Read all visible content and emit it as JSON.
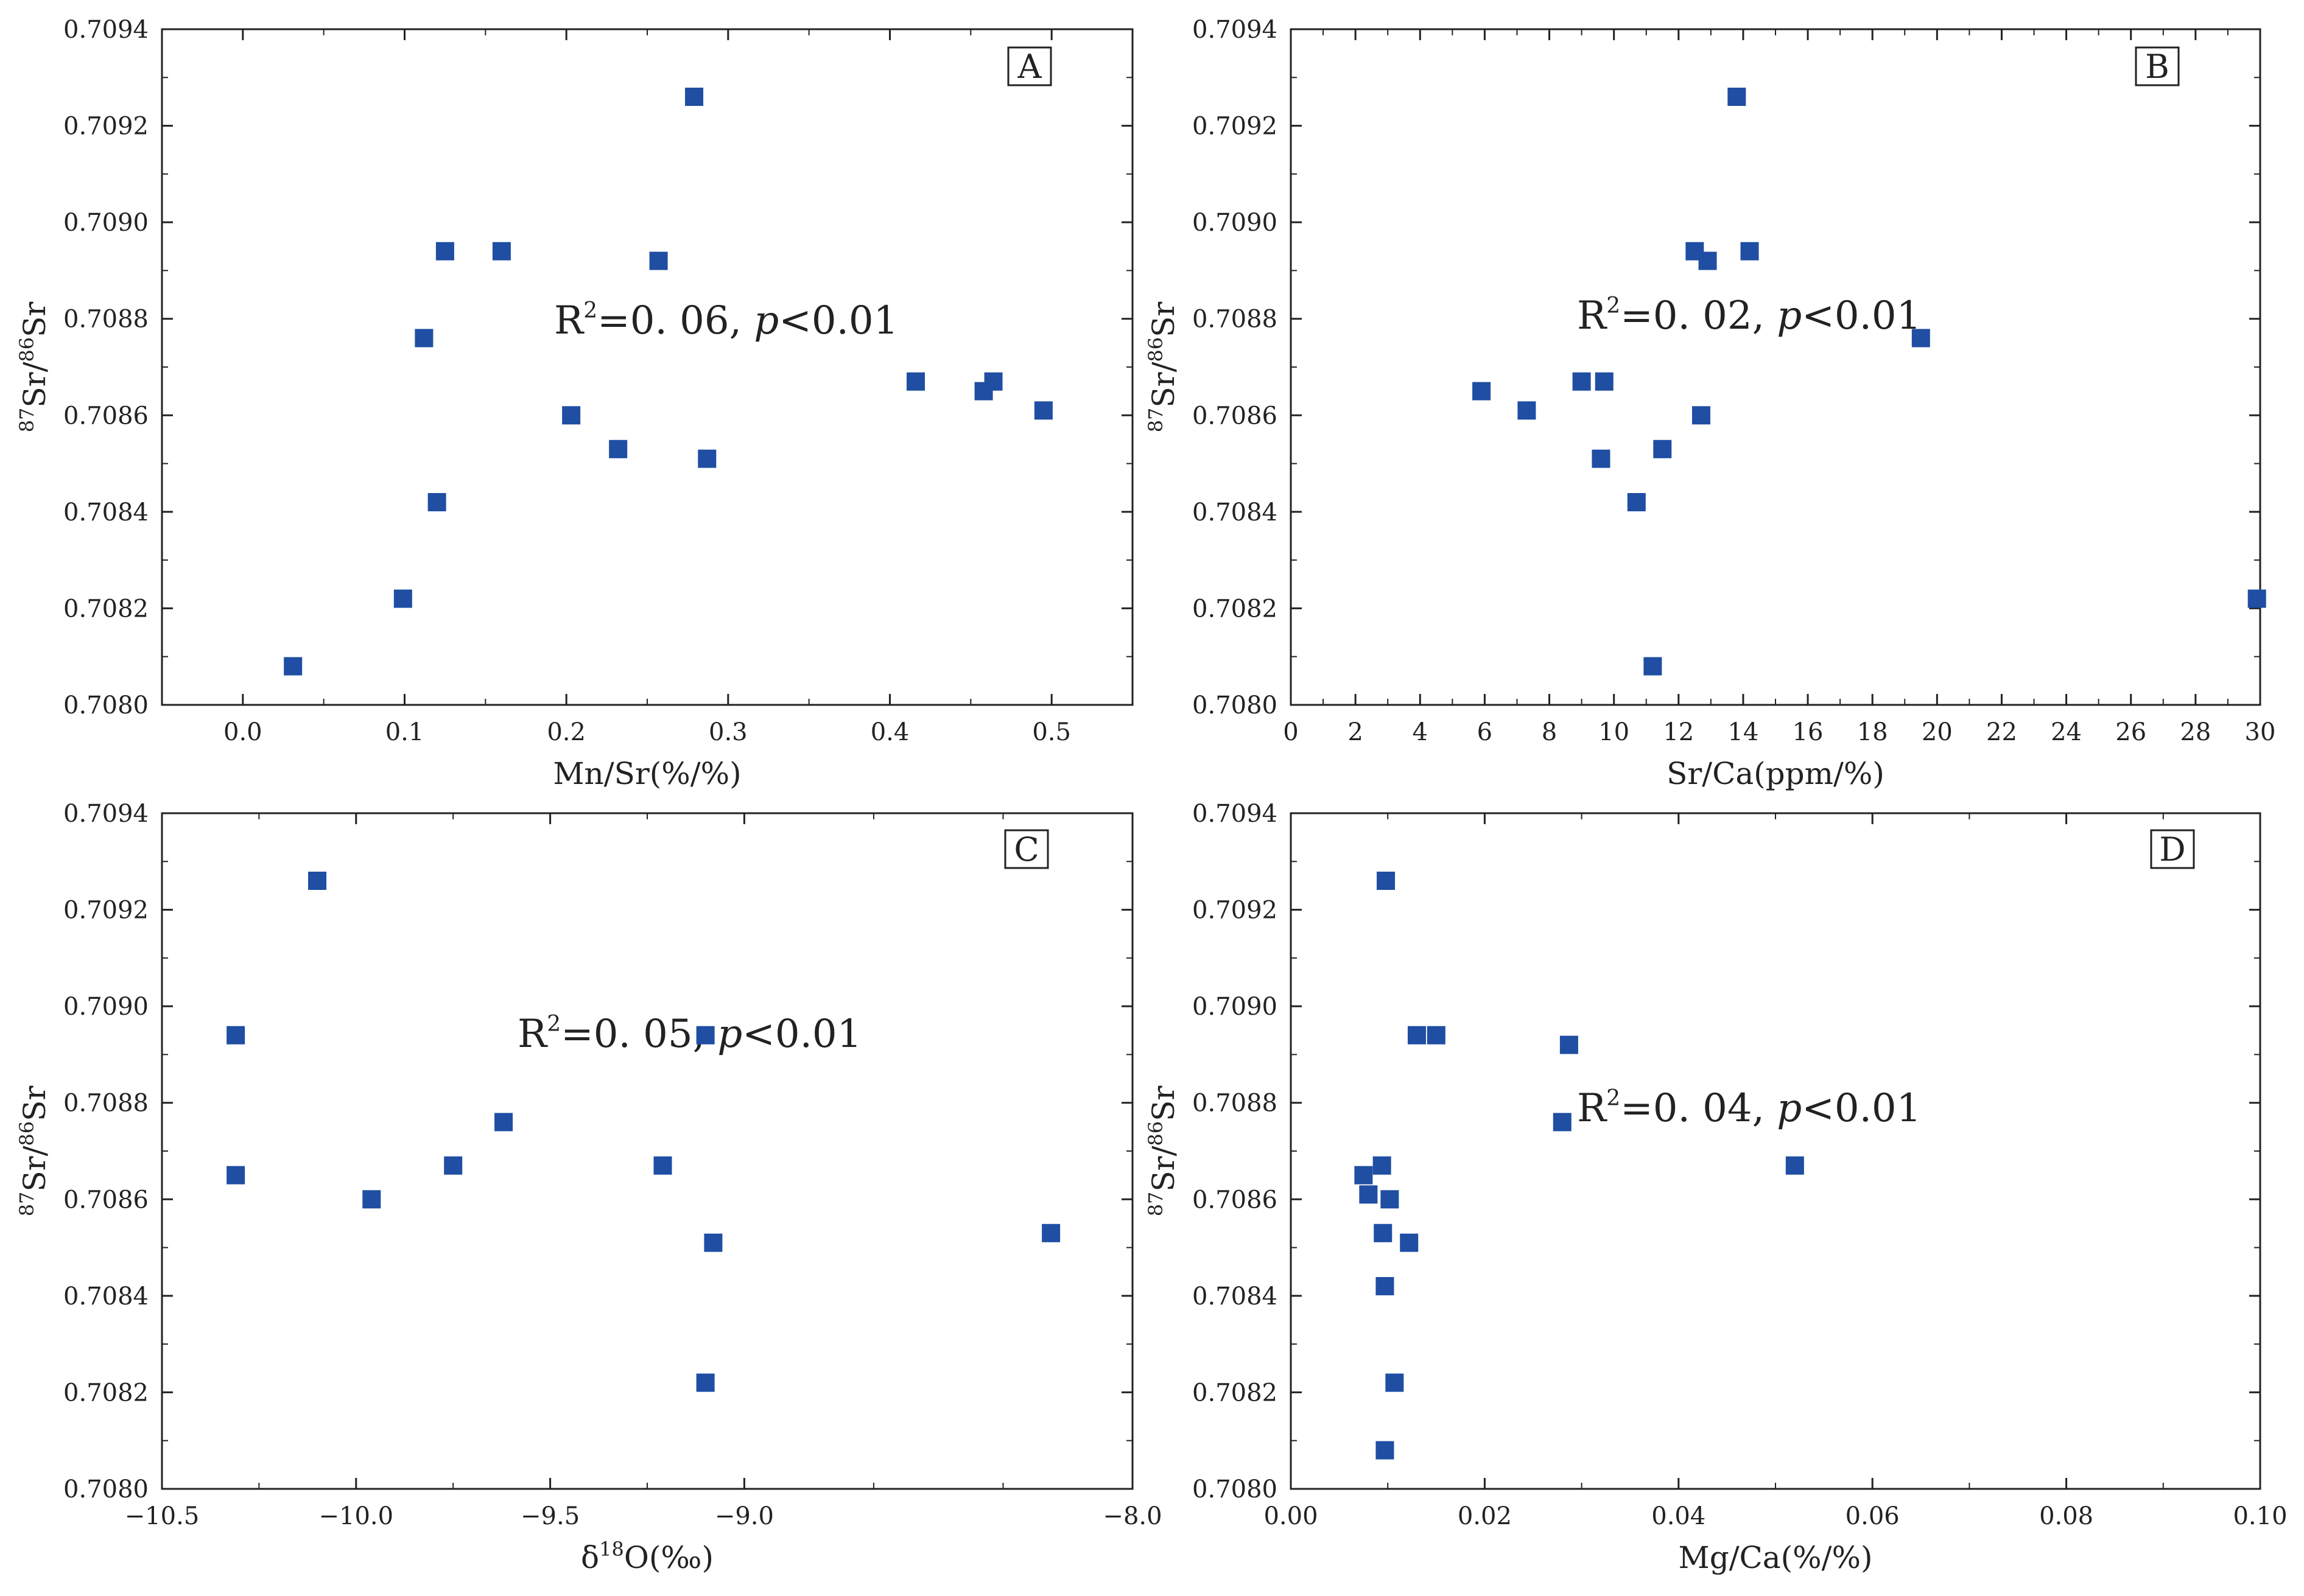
{
  "chart_data": [
    {
      "type": "scatter",
      "panel_label": "A",
      "xlabel": "Mn/Sr(%/%)",
      "ylabel_parts": {
        "sup1": "87",
        "base1": "Sr/",
        "sup2": "86",
        "base2": "Sr"
      },
      "xlim": [
        -0.05,
        0.55
      ],
      "ylim": [
        0.708,
        0.7094
      ],
      "xticks": [
        0.0,
        0.1,
        0.2,
        0.3,
        0.4,
        0.5
      ],
      "xtick_labels": [
        "0.0",
        "0.1",
        "0.2",
        "0.3",
        "0.4",
        "0.5"
      ],
      "yticks": [
        0.708,
        0.7082,
        0.7084,
        0.7086,
        0.7088,
        0.709,
        0.7092,
        0.7094
      ],
      "ytick_labels": [
        "0.7080",
        "0.7082",
        "0.7084",
        "0.7086",
        "0.7088",
        "0.7090",
        "0.7092",
        "0.7094"
      ],
      "annotation": {
        "r_text": "R",
        "r_sup": "2",
        "value_text": "=0. 06, ",
        "p_text": "p",
        "threshold_text": "<0.01"
      },
      "points": [
        {
          "x": 0.031,
          "y": 0.70808
        },
        {
          "x": 0.099,
          "y": 0.70822
        },
        {
          "x": 0.112,
          "y": 0.70876
        },
        {
          "x": 0.12,
          "y": 0.70842
        },
        {
          "x": 0.125,
          "y": 0.70894
        },
        {
          "x": 0.16,
          "y": 0.70894
        },
        {
          "x": 0.203,
          "y": 0.7086
        },
        {
          "x": 0.232,
          "y": 0.70853
        },
        {
          "x": 0.257,
          "y": 0.70892
        },
        {
          "x": 0.279,
          "y": 0.70926
        },
        {
          "x": 0.287,
          "y": 0.70851
        },
        {
          "x": 0.416,
          "y": 0.70867
        },
        {
          "x": 0.458,
          "y": 0.70865
        },
        {
          "x": 0.464,
          "y": 0.70867
        },
        {
          "x": 0.495,
          "y": 0.70861
        }
      ],
      "marker_color": "#1f4ea3"
    },
    {
      "type": "scatter",
      "panel_label": "B",
      "xlabel": "Sr/Ca(ppm/%)",
      "ylabel_parts": {
        "sup1": "87",
        "base1": "Sr/",
        "sup2": "86",
        "base2": "Sr"
      },
      "xlim": [
        0,
        30
      ],
      "ylim": [
        0.708,
        0.7094
      ],
      "xticks": [
        0,
        2,
        4,
        6,
        8,
        10,
        12,
        14,
        16,
        18,
        20,
        22,
        24,
        26,
        28,
        30
      ],
      "xtick_labels": [
        "0",
        "2",
        "4",
        "6",
        "8",
        "10",
        "12",
        "14",
        "16",
        "18",
        "20",
        "22",
        "24",
        "26",
        "28",
        "30"
      ],
      "yticks": [
        0.708,
        0.7082,
        0.7084,
        0.7086,
        0.7088,
        0.709,
        0.7092,
        0.7094
      ],
      "ytick_labels": [
        "0.7080",
        "0.7082",
        "0.7084",
        "0.7086",
        "0.7088",
        "0.7090",
        "0.7092",
        "0.7094"
      ],
      "annotation": {
        "r_text": "R",
        "r_sup": "2",
        "value_text": "=0. 02, ",
        "p_text": "p",
        "threshold_text": "<0.01"
      },
      "points": [
        {
          "x": 5.9,
          "y": 0.70865
        },
        {
          "x": 7.3,
          "y": 0.70861
        },
        {
          "x": 9.0,
          "y": 0.70867
        },
        {
          "x": 9.6,
          "y": 0.70851
        },
        {
          "x": 9.7,
          "y": 0.70867
        },
        {
          "x": 10.7,
          "y": 0.70842
        },
        {
          "x": 11.2,
          "y": 0.70808
        },
        {
          "x": 11.5,
          "y": 0.70853
        },
        {
          "x": 12.5,
          "y": 0.70894
        },
        {
          "x": 12.7,
          "y": 0.7086
        },
        {
          "x": 12.9,
          "y": 0.70892
        },
        {
          "x": 13.8,
          "y": 0.70926
        },
        {
          "x": 14.2,
          "y": 0.70894
        },
        {
          "x": 19.5,
          "y": 0.70876
        },
        {
          "x": 29.9,
          "y": 0.70822
        }
      ],
      "marker_color": "#1f4ea3"
    },
    {
      "type": "scatter",
      "panel_label": "C",
      "xlabel": "δ18O(‰)",
      "xlabel_parts": {
        "pre": "δ",
        "sup": "18",
        "post": "O(‰)"
      },
      "ylabel_parts": {
        "sup1": "87",
        "base1": "Sr/",
        "sup2": "86",
        "base2": "Sr"
      },
      "xlim": [
        -10.5,
        -8.0
      ],
      "ylim": [
        0.708,
        0.7094
      ],
      "xticks": [
        -10.5,
        -10.0,
        -9.5,
        -9.0,
        -8.0
      ],
      "xtick_labels": [
        "−10.5",
        "−10.0",
        "−9.5",
        "−9.0",
        "−8.0"
      ],
      "yticks": [
        0.708,
        0.7082,
        0.7084,
        0.7086,
        0.7088,
        0.709,
        0.7092,
        0.7094
      ],
      "ytick_labels": [
        "0.7080",
        "0.7082",
        "0.7084",
        "0.7086",
        "0.7088",
        "0.7090",
        "0.7092",
        "0.7094"
      ],
      "annotation": {
        "r_text": "R",
        "r_sup": "2",
        "value_text": "=0. 05, ",
        "p_text": "p",
        "threshold_text": "<0.01"
      },
      "points": [
        {
          "x": -10.31,
          "y": 0.70894
        },
        {
          "x": -10.31,
          "y": 0.70865
        },
        {
          "x": -10.1,
          "y": 0.70926
        },
        {
          "x": -9.96,
          "y": 0.7086
        },
        {
          "x": -9.75,
          "y": 0.70867
        },
        {
          "x": -9.62,
          "y": 0.70876
        },
        {
          "x": -9.21,
          "y": 0.70867
        },
        {
          "x": -9.1,
          "y": 0.70894
        },
        {
          "x": -9.1,
          "y": 0.70822
        },
        {
          "x": -9.08,
          "y": 0.70851
        },
        {
          "x": -8.21,
          "y": 0.70853
        }
      ],
      "marker_color": "#1f4ea3"
    },
    {
      "type": "scatter",
      "panel_label": "D",
      "xlabel": "Mg/Ca(%/%)",
      "ylabel_parts": {
        "sup1": "87",
        "base1": "Sr/",
        "sup2": "86",
        "base2": "Sr"
      },
      "xlim": [
        0.0,
        0.1
      ],
      "ylim": [
        0.708,
        0.7094
      ],
      "xticks": [
        0.0,
        0.02,
        0.04,
        0.06,
        0.08,
        0.1
      ],
      "xtick_labels": [
        "0.00",
        "0.02",
        "0.04",
        "0.06",
        "0.08",
        "0.10"
      ],
      "yticks": [
        0.708,
        0.7082,
        0.7084,
        0.7086,
        0.7088,
        0.709,
        0.7092,
        0.7094
      ],
      "ytick_labels": [
        "0.7080",
        "0.7082",
        "0.7084",
        "0.7086",
        "0.7088",
        "0.7090",
        "0.7092",
        "0.7094"
      ],
      "annotation": {
        "r_text": "R",
        "r_sup": "2",
        "value_text": "=0. 04, ",
        "p_text": "p",
        "threshold_text": "<0.01"
      },
      "points": [
        {
          "x": 0.0075,
          "y": 0.70865
        },
        {
          "x": 0.008,
          "y": 0.70861
        },
        {
          "x": 0.0094,
          "y": 0.70867
        },
        {
          "x": 0.0095,
          "y": 0.70853
        },
        {
          "x": 0.0097,
          "y": 0.70842
        },
        {
          "x": 0.0097,
          "y": 0.70808
        },
        {
          "x": 0.0098,
          "y": 0.70926
        },
        {
          "x": 0.0102,
          "y": 0.7086
        },
        {
          "x": 0.0107,
          "y": 0.70822
        },
        {
          "x": 0.0122,
          "y": 0.70851
        },
        {
          "x": 0.013,
          "y": 0.70894
        },
        {
          "x": 0.015,
          "y": 0.70894
        },
        {
          "x": 0.028,
          "y": 0.70876
        },
        {
          "x": 0.0287,
          "y": 0.70892
        },
        {
          "x": 0.052,
          "y": 0.70867
        }
      ],
      "marker_color": "#1f4ea3"
    }
  ]
}
